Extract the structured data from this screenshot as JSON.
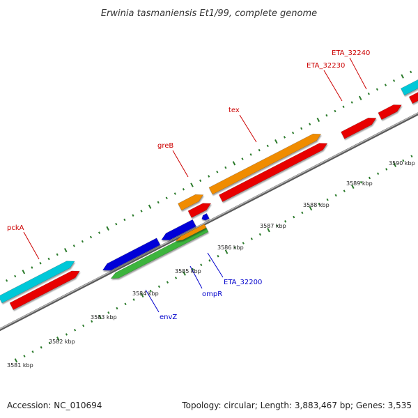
{
  "title": "Erwinia tasmaniensis Et1/99, complete genome",
  "footer": {
    "accession": "Accession: NC_010694",
    "summary": "Topology: circular; Length: 3,883,467 bp; Genes: 3,535"
  },
  "colors": {
    "cyan": "#00c8d8",
    "red": "#e80000",
    "orange": "#f08c00",
    "blue": "#0000d8",
    "green": "#3cb43c",
    "tick": "#2a7a2a",
    "backbone": "#808080",
    "label_red": "#cc0000",
    "label_blue": "#0000cc"
  },
  "scale_labels": [
    "3581 kbp",
    "3582 kbp",
    "3583 kbp",
    "3584 kbp",
    "3585 kbp",
    "3586 kbp",
    "3587 kbp",
    "3588 kbp",
    "3589 kbp",
    "3590 kbp"
  ],
  "gene_labels": [
    {
      "name": "pckA",
      "color": "label_red"
    },
    {
      "name": "greB",
      "color": "label_red"
    },
    {
      "name": "tex",
      "color": "label_red"
    },
    {
      "name": "ETA_32230",
      "color": "label_red"
    },
    {
      "name": "ETA_32240",
      "color": "label_red"
    },
    {
      "name": "envZ",
      "color": "label_blue"
    },
    {
      "name": "ompR",
      "color": "label_blue"
    },
    {
      "name": "ETA_32200",
      "color": "label_blue"
    }
  ]
}
